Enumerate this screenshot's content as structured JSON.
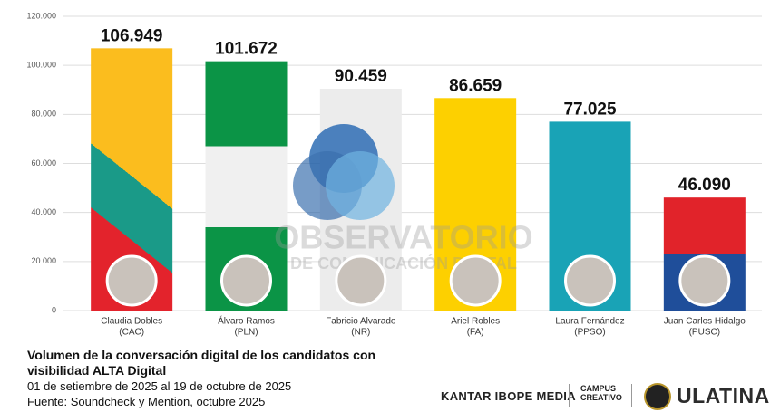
{
  "chart_data": {
    "type": "bar",
    "categories": [
      "Claudia Dobles",
      "Álvaro Ramos",
      "Fabricio Alvarado",
      "Ariel Robles",
      "Laura Fernández",
      "Juan Carlos Hidalgo"
    ],
    "category_parties": [
      "(CAC)",
      "(PLN)",
      "(NR)",
      "(FA)",
      "(PPSO)",
      "(PUSC)"
    ],
    "values": [
      106949,
      101672,
      90459,
      86659,
      77025,
      46090
    ],
    "value_labels": [
      "106.949",
      "101.672",
      "90.459",
      "86.659",
      "77.025",
      "46.090"
    ],
    "ylim": [
      0,
      120000
    ],
    "yticks": [
      0,
      {
        "value": 20000,
        "label": "20.000"
      },
      {
        "value": 40000,
        "label": "40.000"
      },
      {
        "value": 60000,
        "label": "60.000"
      },
      {
        "value": 80000,
        "label": "80.000"
      },
      {
        "value": 100000,
        "label": "100.000"
      },
      {
        "value": 120000,
        "label": "120.000"
      }
    ],
    "grid": true,
    "title": "Volumen de la conversación digital de los candidatos con visibilidad ALTA Digital",
    "subtitle": [
      "01 de setiembre de 2025 al 19 de octubre de 2025",
      "Fuente: Soundcheck y Mention, octubre 2025"
    ]
  },
  "watermark": [
    "OBSERVATORIO",
    "DE COMUNICACIÓN DIGITAL"
  ],
  "logos": {
    "kantar": "KANTAR IBOPE MEDIA",
    "campus": [
      "CAMPUS",
      "CREATIVO"
    ],
    "ulatina": "ULATINA"
  }
}
